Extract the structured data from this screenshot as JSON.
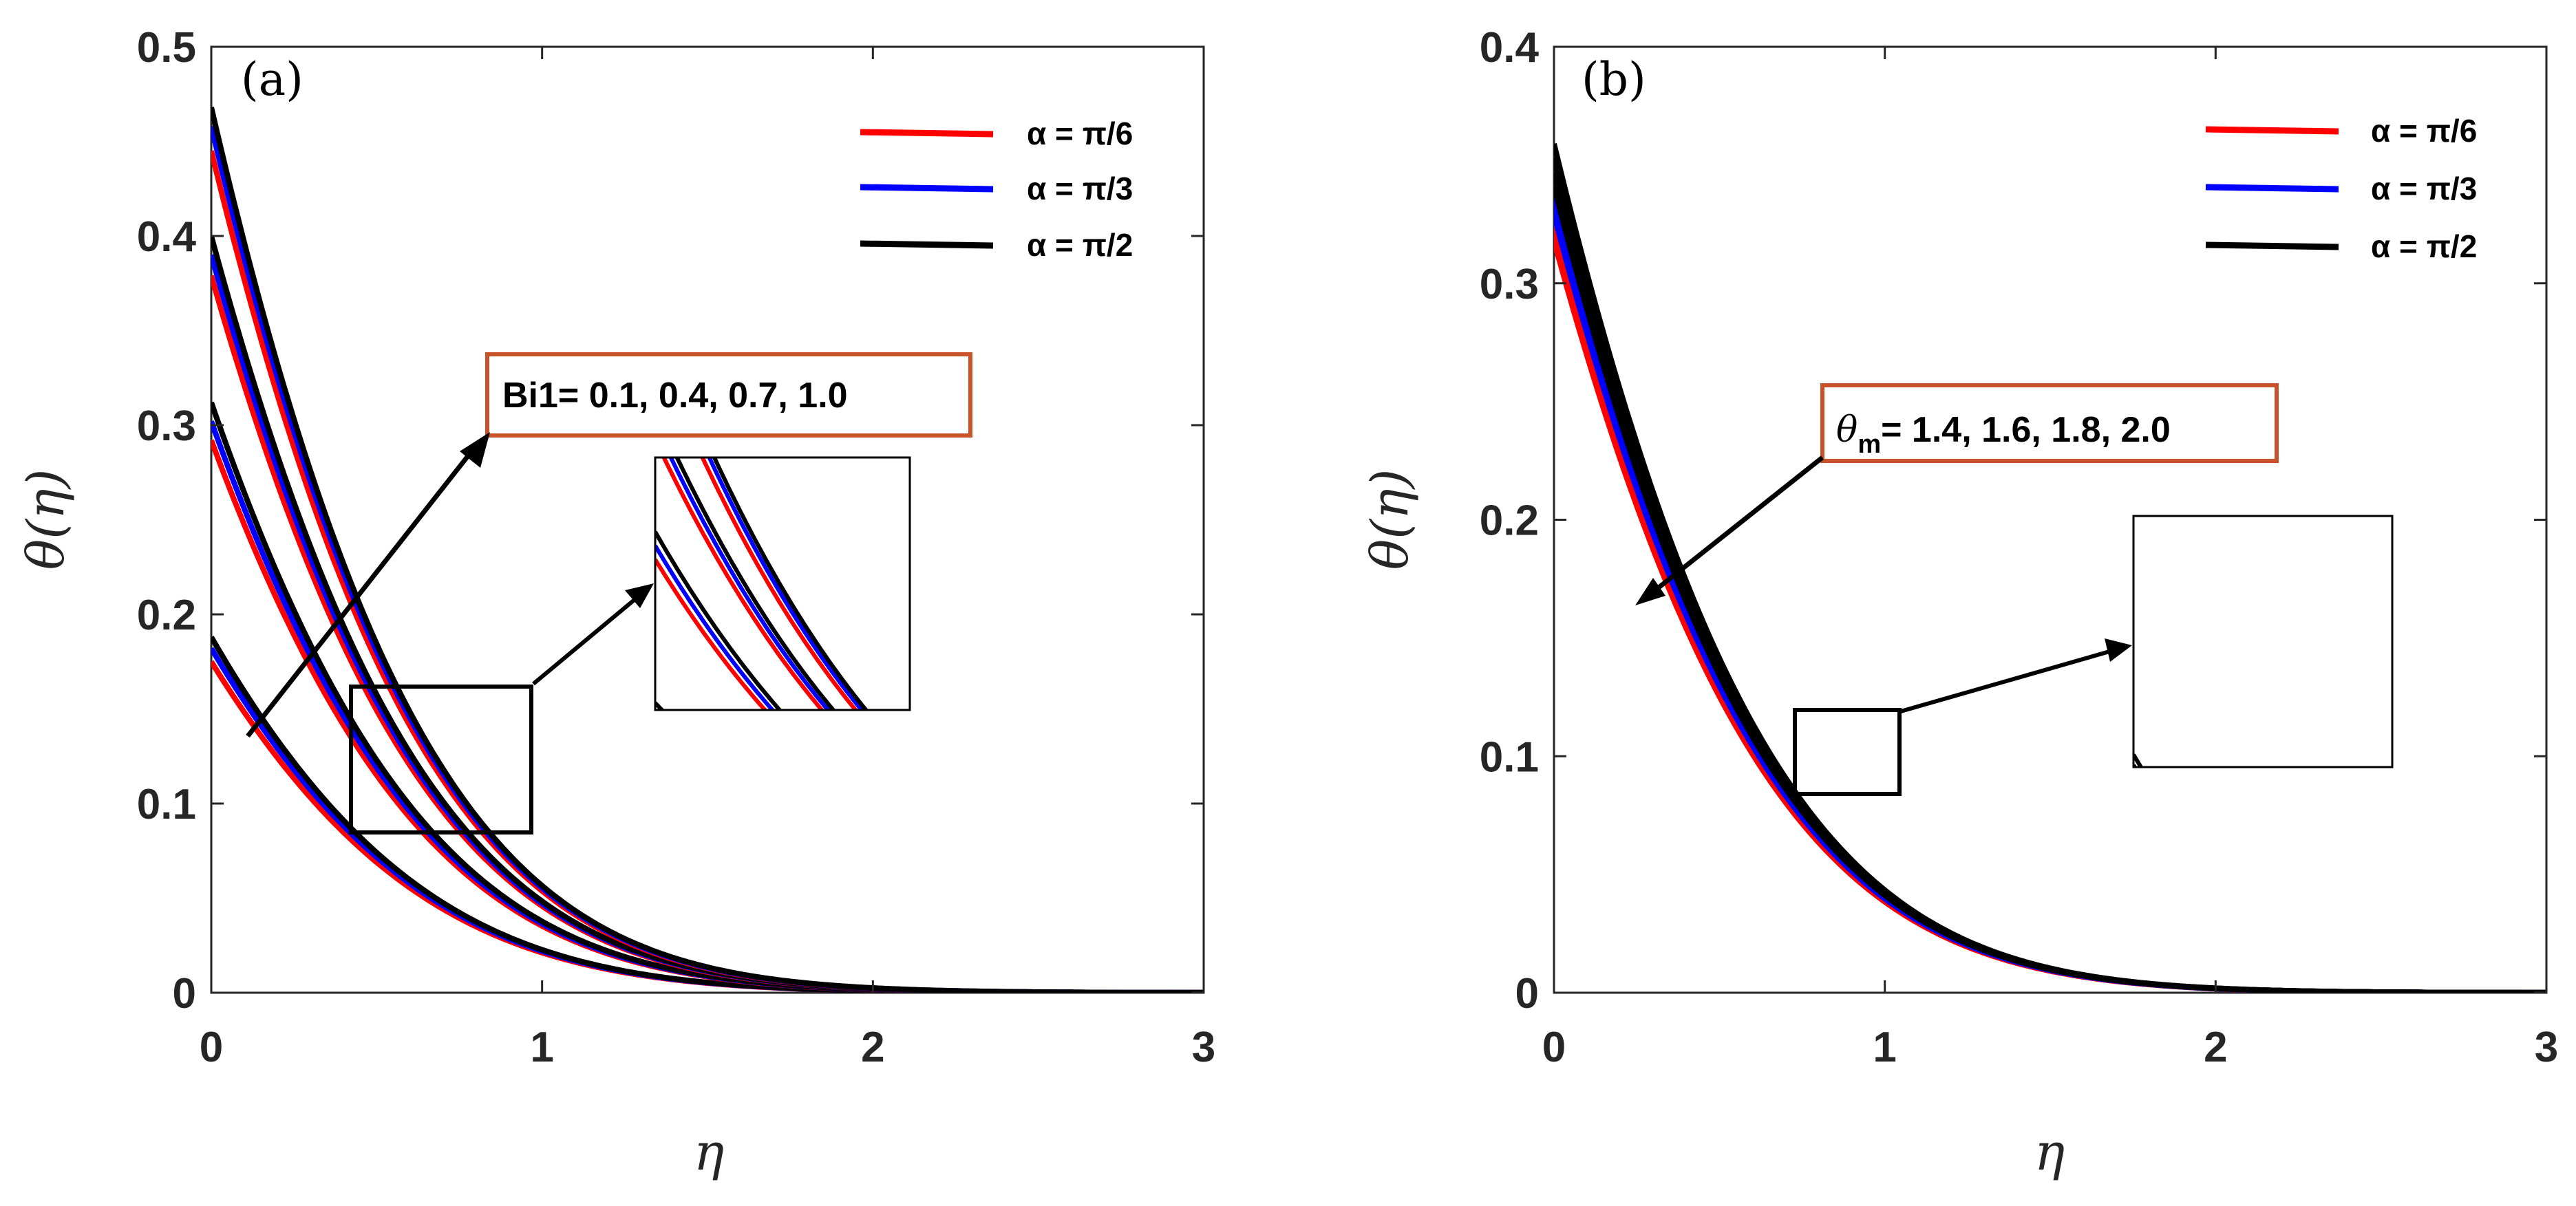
{
  "chart_data": [
    {
      "type": "line",
      "panel_label": "(a)",
      "xlabel": "η",
      "ylabel": "θ(η)",
      "xlim": [
        0,
        3
      ],
      "ylim": [
        0,
        0.5
      ],
      "xticks": [
        "0",
        "1",
        "2",
        "3"
      ],
      "yticks": [
        "0",
        "0.1",
        "0.2",
        "0.3",
        "0.4",
        "0.5"
      ],
      "legend": [
        {
          "label": "α = π/6",
          "color": "#ff0000"
        },
        {
          "label": "α = π/3",
          "color": "#0000ff"
        },
        {
          "label": "α = π/2",
          "color": "#000000"
        }
      ],
      "annotation": "Bi1= 0.1, 0.4, 0.7, 1.0",
      "annotation_border_color": "#c8532a",
      "decay_length": 0.62,
      "series": [
        {
          "name": "α = π/6, Bi1 = 0.1",
          "color": "#ff0000",
          "theta0": 0.175
        },
        {
          "name": "α = π/3, Bi1 = 0.1",
          "color": "#0000ff",
          "theta0": 0.182
        },
        {
          "name": "α = π/2, Bi1 = 0.1",
          "color": "#000000",
          "theta0": 0.188
        },
        {
          "name": "α = π/6, Bi1 = 0.4",
          "color": "#ff0000",
          "theta0": 0.292
        },
        {
          "name": "α = π/3, Bi1 = 0.4",
          "color": "#0000ff",
          "theta0": 0.302
        },
        {
          "name": "α = π/2, Bi1 = 0.4",
          "color": "#000000",
          "theta0": 0.312
        },
        {
          "name": "α = π/6, Bi1 = 0.7",
          "color": "#ff0000",
          "theta0": 0.379
        },
        {
          "name": "α = π/3, Bi1 = 0.7",
          "color": "#0000ff",
          "theta0": 0.39
        },
        {
          "name": "α = π/2, Bi1 = 0.7",
          "color": "#000000",
          "theta0": 0.4
        },
        {
          "name": "α = π/6, Bi1 = 1.0",
          "color": "#ff0000",
          "theta0": 0.445
        },
        {
          "name": "α = π/3, Bi1 = 1.0",
          "color": "#0000ff",
          "theta0": 0.458
        },
        {
          "name": "α = π/2, Bi1 = 1.0",
          "color": "#000000",
          "theta0": 0.468
        }
      ]
    },
    {
      "type": "line",
      "panel_label": "(b)",
      "xlabel": "η",
      "ylabel": "θ(η)",
      "xlim": [
        0,
        3
      ],
      "ylim": [
        0,
        0.4
      ],
      "xticks": [
        "0",
        "1",
        "2",
        "3"
      ],
      "yticks": [
        "0",
        "0.1",
        "0.2",
        "0.3",
        "0.4"
      ],
      "legend": [
        {
          "label": "α = π/6",
          "color": "#ff0000"
        },
        {
          "label": "α = π/3",
          "color": "#0000ff"
        },
        {
          "label": "α = π/2",
          "color": "#000000"
        }
      ],
      "annotation_symbol": "θ",
      "annotation_subscript": "m",
      "annotation_text": "= 1.4, 1.6, 1.8, 2.0",
      "annotation_border_color": "#c8532a",
      "decay_length": 0.62,
      "series": [
        {
          "name": "α = π/6, θm = 1.4",
          "color": "#ff0000",
          "theta0": 0.318
        },
        {
          "name": "α = π/6, θm = 1.6",
          "color": "#ff0000",
          "theta0": 0.321
        },
        {
          "name": "α = π/6, θm = 1.8",
          "color": "#ff0000",
          "theta0": 0.324
        },
        {
          "name": "α = π/6, θm = 2.0",
          "color": "#ff0000",
          "theta0": 0.327
        },
        {
          "name": "α = π/3, θm = 1.4",
          "color": "#0000ff",
          "theta0": 0.329
        },
        {
          "name": "α = π/3, θm = 1.6",
          "color": "#0000ff",
          "theta0": 0.332
        },
        {
          "name": "α = π/3, θm = 1.8",
          "color": "#0000ff",
          "theta0": 0.335
        },
        {
          "name": "α = π/3, θm = 2.0",
          "color": "#0000ff",
          "theta0": 0.338
        },
        {
          "name": "α = π/2, θm = 1.4",
          "color": "#000000",
          "theta0": 0.341
        },
        {
          "name": "α = π/2, θm = 1.6",
          "color": "#000000",
          "theta0": 0.347
        },
        {
          "name": "α = π/2, θm = 1.8",
          "color": "#000000",
          "theta0": 0.353
        },
        {
          "name": "α = π/2, θm = 2.0",
          "color": "#000000",
          "theta0": 0.359
        }
      ]
    }
  ]
}
